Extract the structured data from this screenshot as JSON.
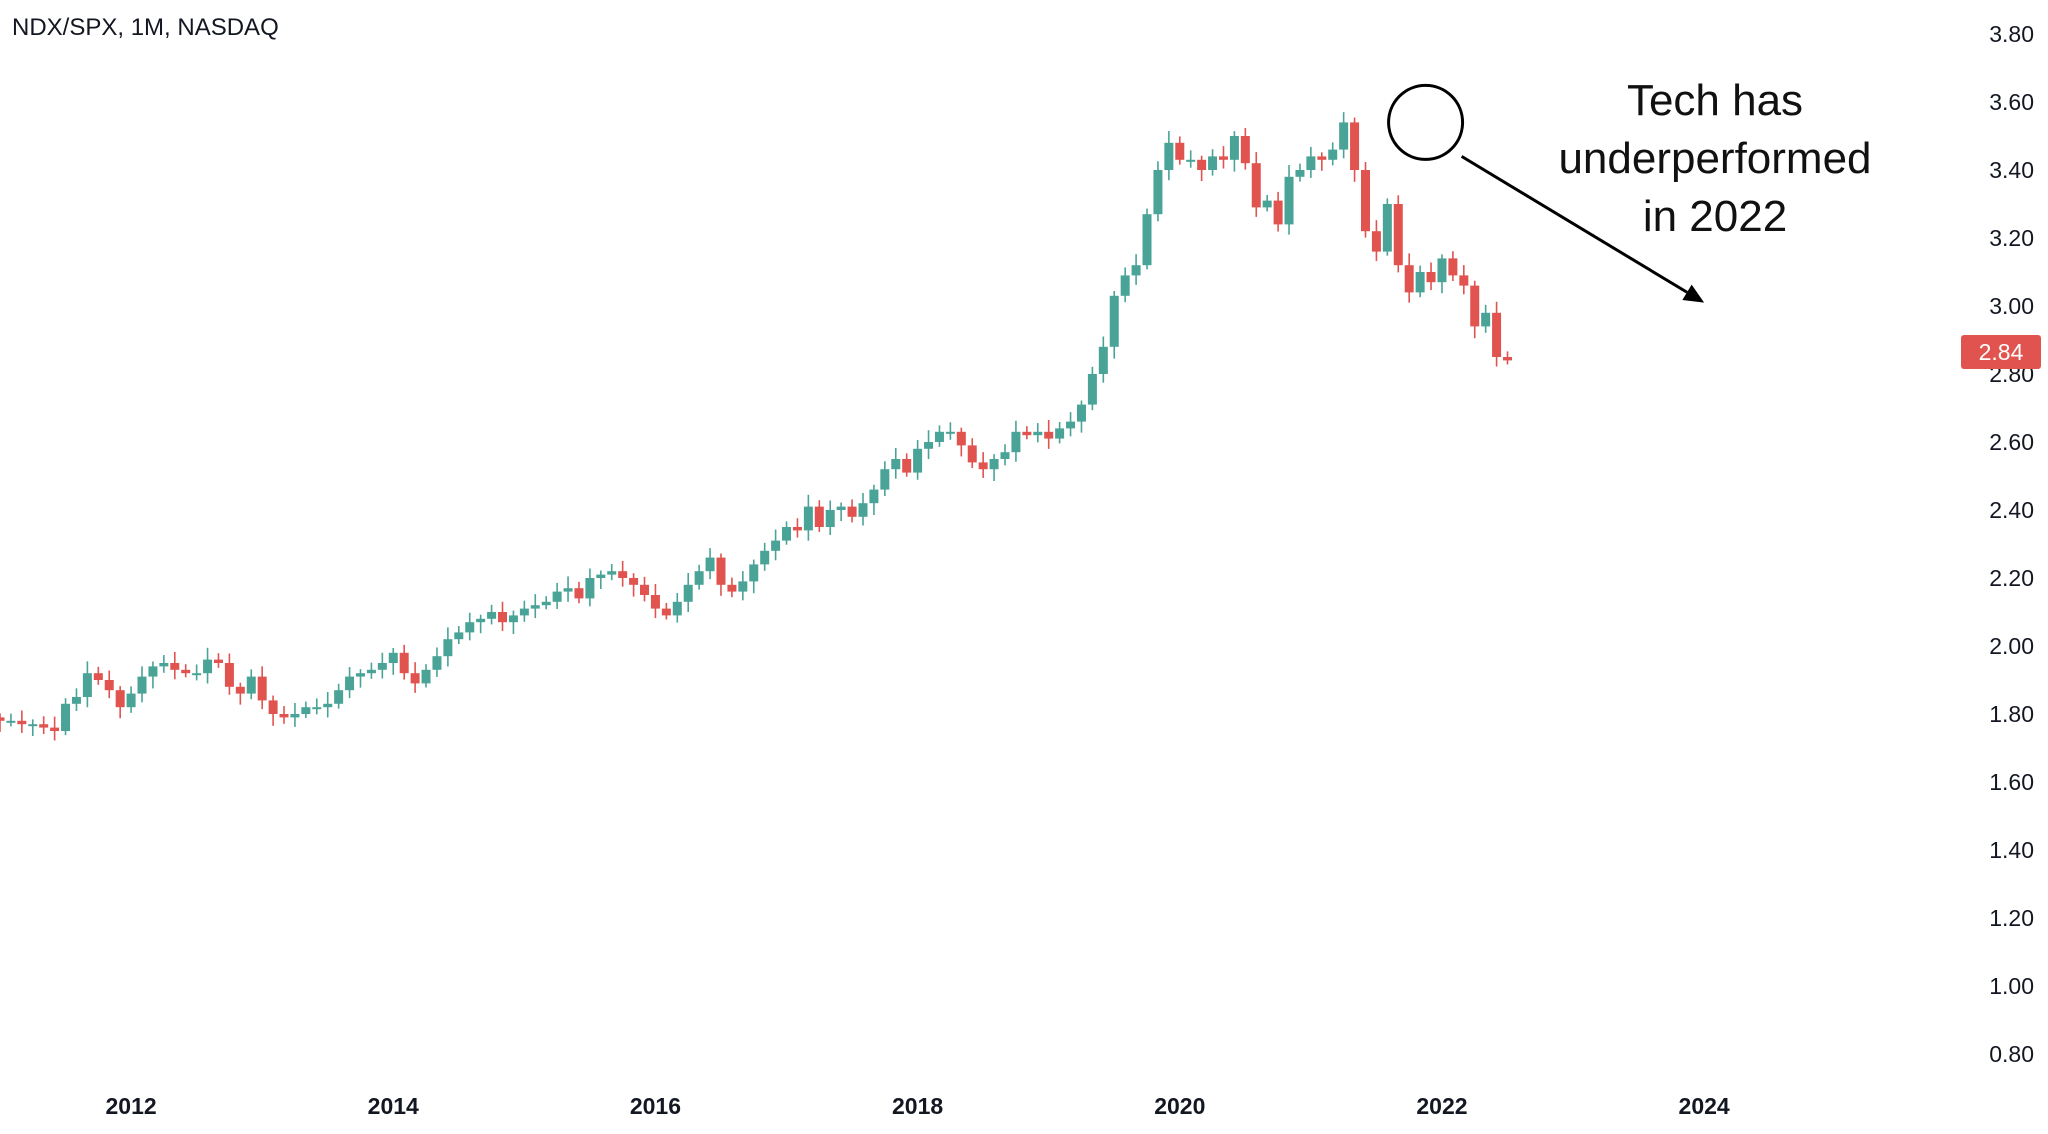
{
  "header": {
    "symbol_label": "NDX/SPX, 1M, NASDAQ"
  },
  "annotation": {
    "lines": [
      "Tech has",
      "underperformed",
      "in 2022"
    ]
  },
  "price_tag": {
    "label": "2.84",
    "color": "#e0534f"
  },
  "colors": {
    "up": "#4aa397",
    "down": "#e0534f",
    "axis_text": "#131722",
    "annotation": "#000000"
  },
  "chart_data": {
    "type": "candlestick",
    "title": "NDX/SPX, 1M, NASDAQ",
    "interval": "1M",
    "x_range": [
      2011.0,
      2025.25
    ],
    "ylim": [
      0.75,
      3.85
    ],
    "y_ticks": [
      0.8,
      1.0,
      1.2,
      1.4,
      1.6,
      1.8,
      2.0,
      2.2,
      2.4,
      2.6,
      2.8,
      3.0,
      3.2,
      3.4,
      3.6,
      3.8
    ],
    "y_tick_labels": [
      "0.80",
      "1.00",
      "1.20",
      "1.40",
      "1.60",
      "1.80",
      "2.00",
      "2.20",
      "2.40",
      "2.60",
      "2.80",
      "3.00",
      "3.20",
      "3.40",
      "3.60",
      "3.80"
    ],
    "x_ticks": [
      2012,
      2014,
      2016,
      2018,
      2020,
      2022,
      2024
    ],
    "x_tick_labels": [
      "2012",
      "2014",
      "2016",
      "2018",
      "2020",
      "2022",
      "2024"
    ],
    "last_price": 2.84,
    "highlight": {
      "date": 2021.875,
      "value": 3.54,
      "description": "circled peak"
    },
    "arrow": {
      "from": [
        2022.15,
        3.44
      ],
      "to": [
        2024.0,
        3.01
      ]
    },
    "closes": [
      1.78,
      1.78,
      1.77,
      1.77,
      1.76,
      1.75,
      1.83,
      1.85,
      1.92,
      1.9,
      1.87,
      1.82,
      1.86,
      1.91,
      1.94,
      1.95,
      1.93,
      1.92,
      1.92,
      1.96,
      1.95,
      1.88,
      1.86,
      1.91,
      1.84,
      1.8,
      1.79,
      1.8,
      1.82,
      1.82,
      1.83,
      1.87,
      1.91,
      1.92,
      1.93,
      1.95,
      1.98,
      1.92,
      1.89,
      1.93,
      1.97,
      2.02,
      2.04,
      2.07,
      2.08,
      2.1,
      2.07,
      2.09,
      2.11,
      2.12,
      2.13,
      2.16,
      2.17,
      2.14,
      2.2,
      2.21,
      2.22,
      2.2,
      2.18,
      2.15,
      2.11,
      2.09,
      2.13,
      2.18,
      2.22,
      2.26,
      2.18,
      2.16,
      2.19,
      2.24,
      2.28,
      2.31,
      2.35,
      2.34,
      2.41,
      2.35,
      2.4,
      2.41,
      2.38,
      2.42,
      2.46,
      2.52,
      2.55,
      2.51,
      2.58,
      2.6,
      2.63,
      2.63,
      2.59,
      2.54,
      2.52,
      2.55,
      2.57,
      2.63,
      2.62,
      2.63,
      2.61,
      2.64,
      2.66,
      2.71,
      2.8,
      2.88,
      3.03,
      3.09,
      3.12,
      3.27,
      3.4,
      3.48,
      3.43,
      3.43,
      3.4,
      3.44,
      3.43,
      3.5,
      3.42,
      3.29,
      3.31,
      3.24,
      3.38,
      3.4,
      3.44,
      3.43,
      3.46,
      3.54,
      3.4,
      3.22,
      3.16,
      3.3,
      3.12,
      3.04,
      3.1,
      3.07,
      3.14,
      3.09,
      3.06,
      2.94,
      2.98,
      2.85,
      2.84
    ]
  }
}
